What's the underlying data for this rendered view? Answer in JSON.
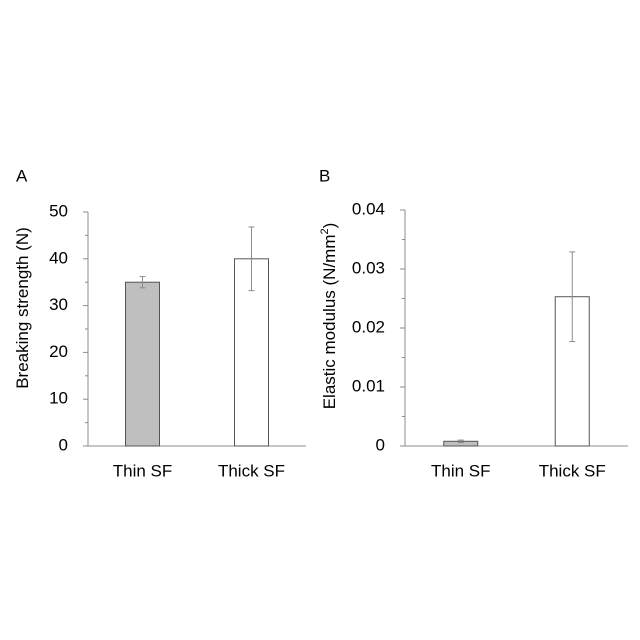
{
  "chart_data": [
    {
      "type": "bar",
      "panel_label": "A",
      "categories": [
        "Thin SF",
        "Thick SF"
      ],
      "values": [
        35,
        40
      ],
      "errors": [
        1.2,
        6.8
      ],
      "bar_colors": [
        "#bfbfbf",
        "#ffffff"
      ],
      "ylabel": "Breaking strength (N)",
      "ylim": [
        0,
        50
      ],
      "yticks": [
        0,
        10,
        20,
        30,
        40,
        50
      ],
      "ytick_labels": [
        "0",
        "10",
        "20",
        "30",
        "40",
        "50"
      ],
      "grid": false
    },
    {
      "type": "bar",
      "panel_label": "B",
      "categories": [
        "Thin SF",
        "Thick SF"
      ],
      "values": [
        0.0008,
        0.0253
      ],
      "errors": [
        0.0002,
        0.0076
      ],
      "bar_colors": [
        "#bfbfbf",
        "#ffffff"
      ],
      "ylabel": "Elastic modulus (N/mm",
      "ylabel_sup": "2",
      "ylabel_suffix": ")",
      "ylim": [
        0,
        0.04
      ],
      "yticks": [
        0,
        0.01,
        0.02,
        0.03,
        0.04
      ],
      "ytick_labels": [
        "0",
        "0.01",
        "0.02",
        "0.03",
        "0.04"
      ],
      "grid": false
    }
  ]
}
